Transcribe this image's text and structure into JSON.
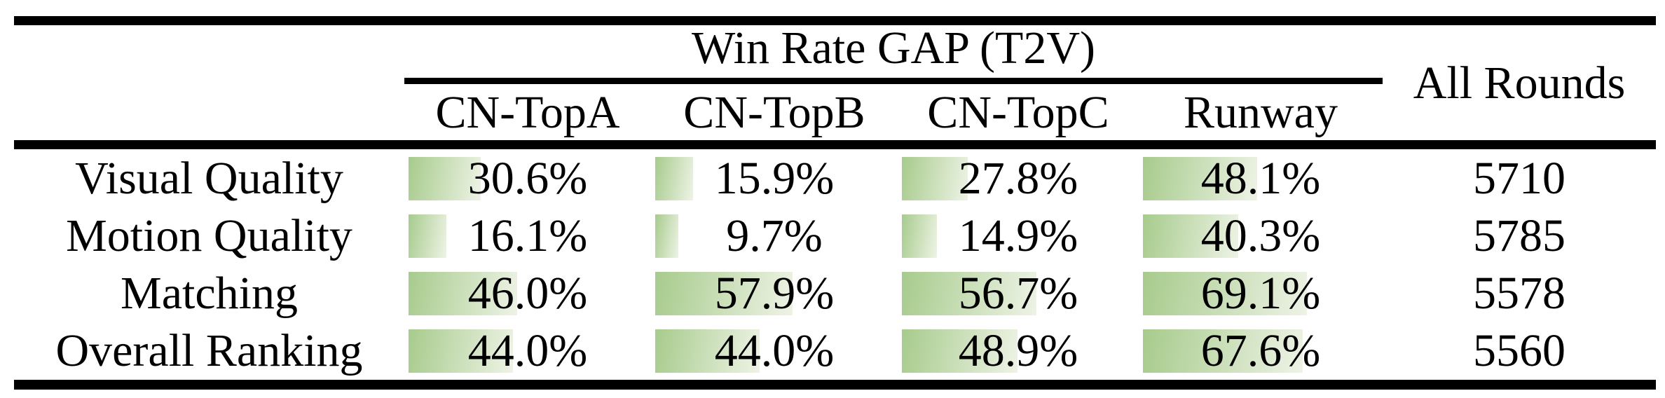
{
  "table": {
    "group_header": "Win Rate GAP (T2V)",
    "all_rounds_header": "All Rounds",
    "columns": [
      "CN-TopA",
      "CN-TopB",
      "CN-TopC",
      "Runway"
    ],
    "rows": [
      {
        "label": "Visual Quality",
        "values": [
          "30.6%",
          "15.9%",
          "27.8%",
          "48.1%"
        ],
        "all_rounds": "5710"
      },
      {
        "label": "Motion Quality",
        "values": [
          "16.1%",
          "9.7%",
          "14.9%",
          "40.3%"
        ],
        "all_rounds": "5785"
      },
      {
        "label": "Matching",
        "values": [
          "46.0%",
          "57.9%",
          "56.7%",
          "69.1%"
        ],
        "all_rounds": "5578"
      },
      {
        "label": "Overall Ranking",
        "values": [
          "44.0%",
          "44.0%",
          "48.9%",
          "67.6%"
        ],
        "all_rounds": "5560"
      }
    ],
    "colors": {
      "bar_gradient_start": "#a7cb8c",
      "bar_gradient_end": "#eef3e6",
      "rule": "#000000",
      "text": "#000000",
      "background": "#ffffff"
    }
  }
}
